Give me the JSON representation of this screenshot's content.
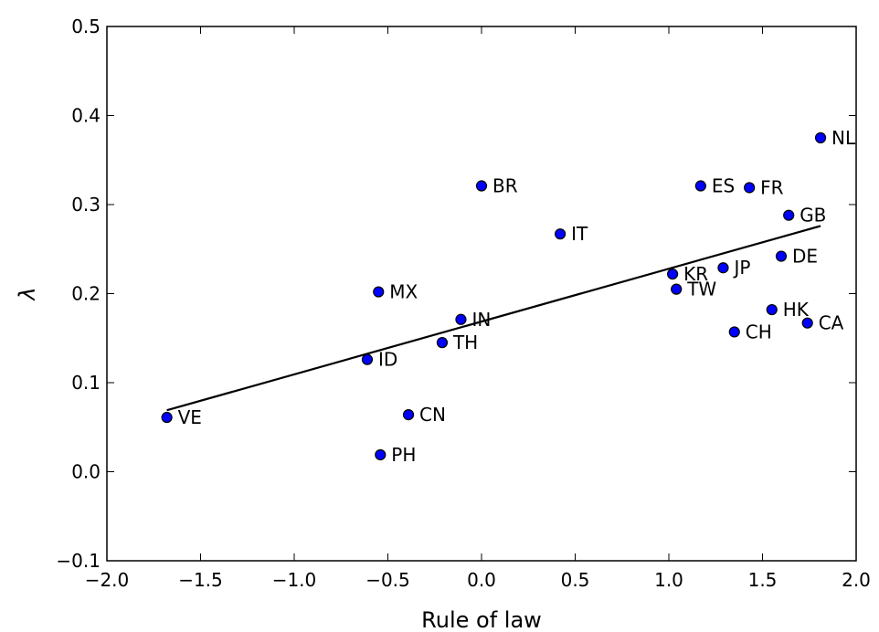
{
  "chart_data": {
    "type": "scatter",
    "xlabel": "Rule of law",
    "ylabel": "λ",
    "xlim": [
      -2.0,
      2.0
    ],
    "ylim": [
      -0.1,
      0.5
    ],
    "xticks": [
      -2.0,
      -1.5,
      -1.0,
      -0.5,
      0.0,
      0.5,
      1.0,
      1.5,
      2.0
    ],
    "xtick_labels": [
      "−2.0",
      "−1.5",
      "−1.0",
      "−0.5",
      "0.0",
      "0.5",
      "1.0",
      "1.5",
      "2.0"
    ],
    "yticks": [
      -0.1,
      0.0,
      0.1,
      0.2,
      0.3,
      0.4,
      0.5
    ],
    "ytick_labels": [
      "−0.1",
      "0.0",
      "0.1",
      "0.2",
      "0.3",
      "0.4",
      "0.5"
    ],
    "grid": false,
    "marker_color": "#0000ff",
    "points": [
      {
        "label": "VE",
        "x": -1.68,
        "y": 0.061
      },
      {
        "label": "PH",
        "x": -0.54,
        "y": 0.019
      },
      {
        "label": "CN",
        "x": -0.39,
        "y": 0.064
      },
      {
        "label": "ID",
        "x": -0.61,
        "y": 0.126
      },
      {
        "label": "MX",
        "x": -0.55,
        "y": 0.202
      },
      {
        "label": "TH",
        "x": -0.21,
        "y": 0.145
      },
      {
        "label": "IN",
        "x": -0.11,
        "y": 0.171
      },
      {
        "label": "BR",
        "x": 0.0,
        "y": 0.321
      },
      {
        "label": "IT",
        "x": 0.42,
        "y": 0.267
      },
      {
        "label": "KR",
        "x": 1.02,
        "y": 0.222
      },
      {
        "label": "TW",
        "x": 1.04,
        "y": 0.205
      },
      {
        "label": "ES",
        "x": 1.17,
        "y": 0.321
      },
      {
        "label": "JP",
        "x": 1.29,
        "y": 0.229
      },
      {
        "label": "CH",
        "x": 1.35,
        "y": 0.157
      },
      {
        "label": "FR",
        "x": 1.43,
        "y": 0.319
      },
      {
        "label": "HK",
        "x": 1.55,
        "y": 0.182
      },
      {
        "label": "DE",
        "x": 1.6,
        "y": 0.242
      },
      {
        "label": "GB",
        "x": 1.64,
        "y": 0.288
      },
      {
        "label": "CA",
        "x": 1.74,
        "y": 0.167
      },
      {
        "label": "NL",
        "x": 1.81,
        "y": 0.375
      }
    ],
    "fit_line": {
      "x": [
        -1.68,
        1.81
      ],
      "y": [
        0.069,
        0.276
      ],
      "color": "#000000"
    }
  }
}
